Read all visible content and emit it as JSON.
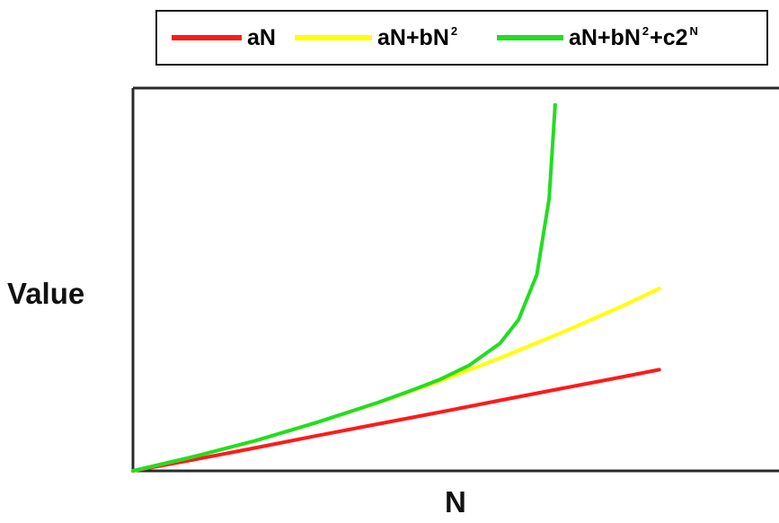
{
  "chart_data": {
    "type": "line",
    "title": "",
    "xlabel": "N",
    "ylabel": "Value",
    "xlim": [
      0,
      10
    ],
    "ylim": [
      0,
      10
    ],
    "grid": false,
    "legend_position": "top",
    "axis_tick_labels": "none",
    "series": [
      {
        "name": "aN",
        "legend_base": "aN",
        "color": "#ff1a1a",
        "x": [
          0,
          1,
          2,
          3,
          4,
          5,
          6,
          7,
          8,
          8.6
        ],
        "y": [
          0,
          0.3,
          0.61,
          0.93,
          1.24,
          1.55,
          1.87,
          2.18,
          2.49,
          2.68
        ]
      },
      {
        "name": "aN+bN²",
        "legend_base": "aN+bN",
        "legend_sup": "2",
        "color": "#ffff00",
        "x": [
          0,
          1,
          2,
          3,
          4,
          5,
          6,
          7,
          8,
          8.6
        ],
        "y": [
          0,
          0.38,
          0.8,
          1.28,
          1.8,
          2.37,
          2.99,
          3.66,
          4.37,
          4.83
        ]
      },
      {
        "name": "aN+bN²+c2ᴺ",
        "legend_base": "aN+bN",
        "legend_sup": "2",
        "legend_mid": "+c2",
        "legend_sup2": "N",
        "color": "#22dd22",
        "x": [
          0,
          1,
          2,
          3,
          4,
          4.5,
          5,
          5.5,
          6,
          6.3,
          6.6,
          6.8,
          6.9
        ],
        "y": [
          0,
          0.38,
          0.8,
          1.28,
          1.81,
          2.1,
          2.41,
          2.8,
          3.38,
          4.0,
          5.2,
          7.2,
          9.7
        ]
      }
    ]
  }
}
